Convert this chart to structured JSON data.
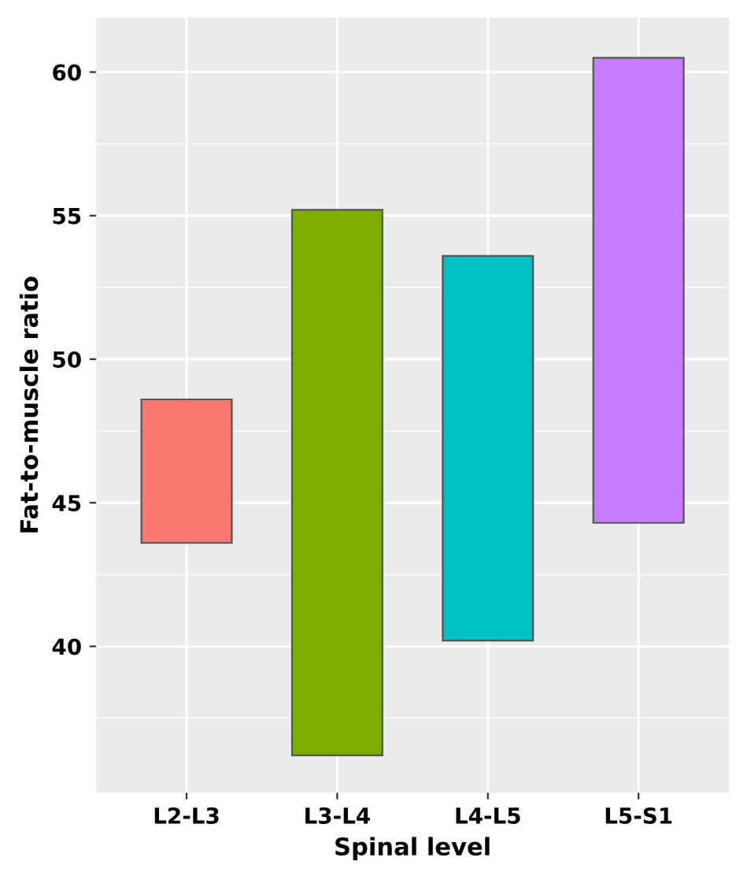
{
  "chart_data": {
    "type": "bar",
    "xlabel": "Spinal level",
    "ylabel": "Fat-to-muscle ratio",
    "categories": [
      "L2-L3",
      "L3-L4",
      "L4-L5",
      "L5-S1"
    ],
    "ylim": [
      34.9,
      61.9
    ],
    "yticks": [
      40,
      45,
      50,
      55,
      60
    ],
    "grid": true,
    "base": [
      43.6,
      36.2,
      40.2,
      44.3
    ],
    "values": [
      5.0,
      19.0,
      13.4,
      16.2
    ],
    "colors": [
      "#f8766d",
      "#7cae00",
      "#00bfc4",
      "#c77cff"
    ]
  }
}
